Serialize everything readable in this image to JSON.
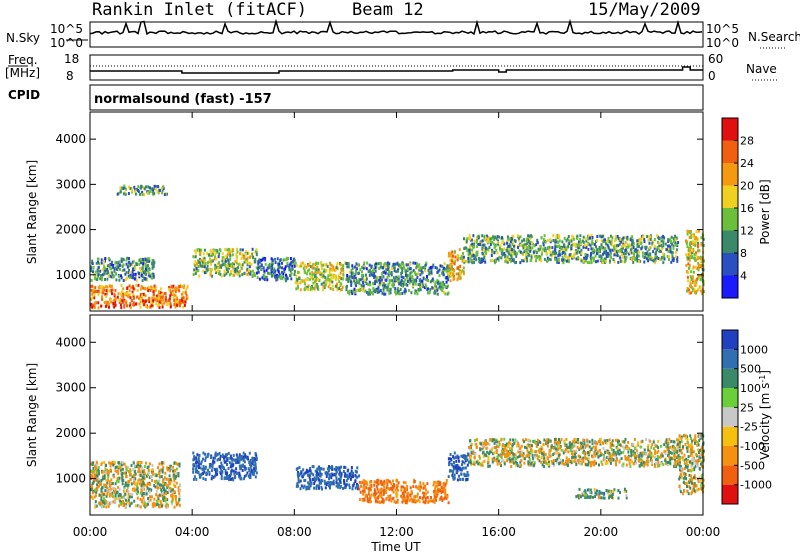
{
  "header": {
    "station": "Rankin Inlet (fitACF)",
    "beam": "Beam 12",
    "date": "15/May/2009"
  },
  "nsky_panel": {
    "left_label": "N.Sky",
    "left_ticks": [
      "10^5",
      "10^0"
    ],
    "right_label": "N.Search",
    "right_ticks": [
      "10^5",
      "10^0"
    ]
  },
  "freq_panel": {
    "left_label_1": "Freq.",
    "left_label_2": "[MHz]",
    "left_ticks": [
      "18",
      "8"
    ],
    "right_label": "Nave",
    "right_ticks": [
      "60",
      "0"
    ]
  },
  "cpid_panel": {
    "label": "CPID",
    "program": "normalsound (fast) -157"
  },
  "axes": {
    "ylabel": "Slant Range [km]",
    "yticks": [
      "1000",
      "2000",
      "3000",
      "4000"
    ],
    "xticks": [
      "00:00",
      "04:00",
      "08:00",
      "12:00",
      "16:00",
      "20:00",
      "00:00"
    ],
    "xlabel": "Time UT"
  },
  "power_colorbar": {
    "label": "Power [dB]",
    "ticks": [
      "4",
      "8",
      "12",
      "16",
      "20",
      "24",
      "28"
    ],
    "colors": [
      "#1a1aff",
      "#2a4fc0",
      "#3a8a6a",
      "#6bbf3a",
      "#f0d020",
      "#f59a10",
      "#f06010",
      "#e01010"
    ]
  },
  "velocity_colorbar": {
    "label": "Velocity [m s^-1]",
    "ticks": [
      "1000",
      "500",
      "100",
      "25",
      "-25",
      "-100",
      "-500",
      "-1000"
    ],
    "colors": [
      "#2040c0",
      "#3070b0",
      "#3a8a6a",
      "#6bcf3a",
      "#c8c8c8",
      "#f5c010",
      "#f59010",
      "#f06010",
      "#e01010"
    ]
  },
  "chart_data": [
    {
      "type": "heatmap",
      "title": "Power [dB]",
      "xlabel": "Time UT",
      "ylabel": "Slant Range [km]",
      "xlim": [
        0,
        24
      ],
      "ylim": [
        200,
        4600
      ],
      "echo_regions": [
        {
          "t": [
            0.0,
            3.8
          ],
          "r": [
            300,
            800
          ],
          "value": 24
        },
        {
          "t": [
            0.0,
            2.5
          ],
          "r": [
            900,
            1400
          ],
          "value": 10
        },
        {
          "t": [
            1.0,
            3.0
          ],
          "r": [
            2800,
            3000
          ],
          "value": 12
        },
        {
          "t": [
            4.0,
            6.5
          ],
          "r": [
            1000,
            1600
          ],
          "value": 14
        },
        {
          "t": [
            6.5,
            8.0
          ],
          "r": [
            900,
            1400
          ],
          "value": 8
        },
        {
          "t": [
            8.0,
            10.0
          ],
          "r": [
            700,
            1300
          ],
          "value": 16
        },
        {
          "t": [
            10.0,
            14.0
          ],
          "r": [
            600,
            1300
          ],
          "value": 10
        },
        {
          "t": [
            14.0,
            14.6
          ],
          "r": [
            900,
            1600
          ],
          "value": 20
        },
        {
          "t": [
            14.6,
            23.0
          ],
          "r": [
            1300,
            1900
          ],
          "value": 12
        },
        {
          "t": [
            23.3,
            24.0
          ],
          "r": [
            600,
            2000
          ],
          "value": 18
        }
      ]
    },
    {
      "type": "heatmap",
      "title": "Velocity [m s^-1]",
      "xlabel": "Time UT",
      "ylabel": "Slant Range [km]",
      "xlim": [
        0,
        24
      ],
      "ylim": [
        200,
        4600
      ],
      "echo_regions": [
        {
          "t": [
            0.0,
            3.5
          ],
          "r": [
            400,
            1400
          ],
          "value": 0
        },
        {
          "t": [
            4.0,
            6.5
          ],
          "r": [
            1000,
            1600
          ],
          "value": 600
        },
        {
          "t": [
            8.0,
            10.5
          ],
          "r": [
            800,
            1300
          ],
          "value": 600
        },
        {
          "t": [
            10.5,
            14.0
          ],
          "r": [
            500,
            1000
          ],
          "value": -300
        },
        {
          "t": [
            14.0,
            14.8
          ],
          "r": [
            1000,
            1600
          ],
          "value": 600
        },
        {
          "t": [
            14.8,
            23.0
          ],
          "r": [
            1300,
            1900
          ],
          "value": 0
        },
        {
          "t": [
            19.0,
            21.0
          ],
          "r": [
            600,
            800
          ],
          "value": 100
        },
        {
          "t": [
            23.0,
            24.0
          ],
          "r": [
            700,
            2000
          ],
          "value": 0
        }
      ]
    }
  ]
}
